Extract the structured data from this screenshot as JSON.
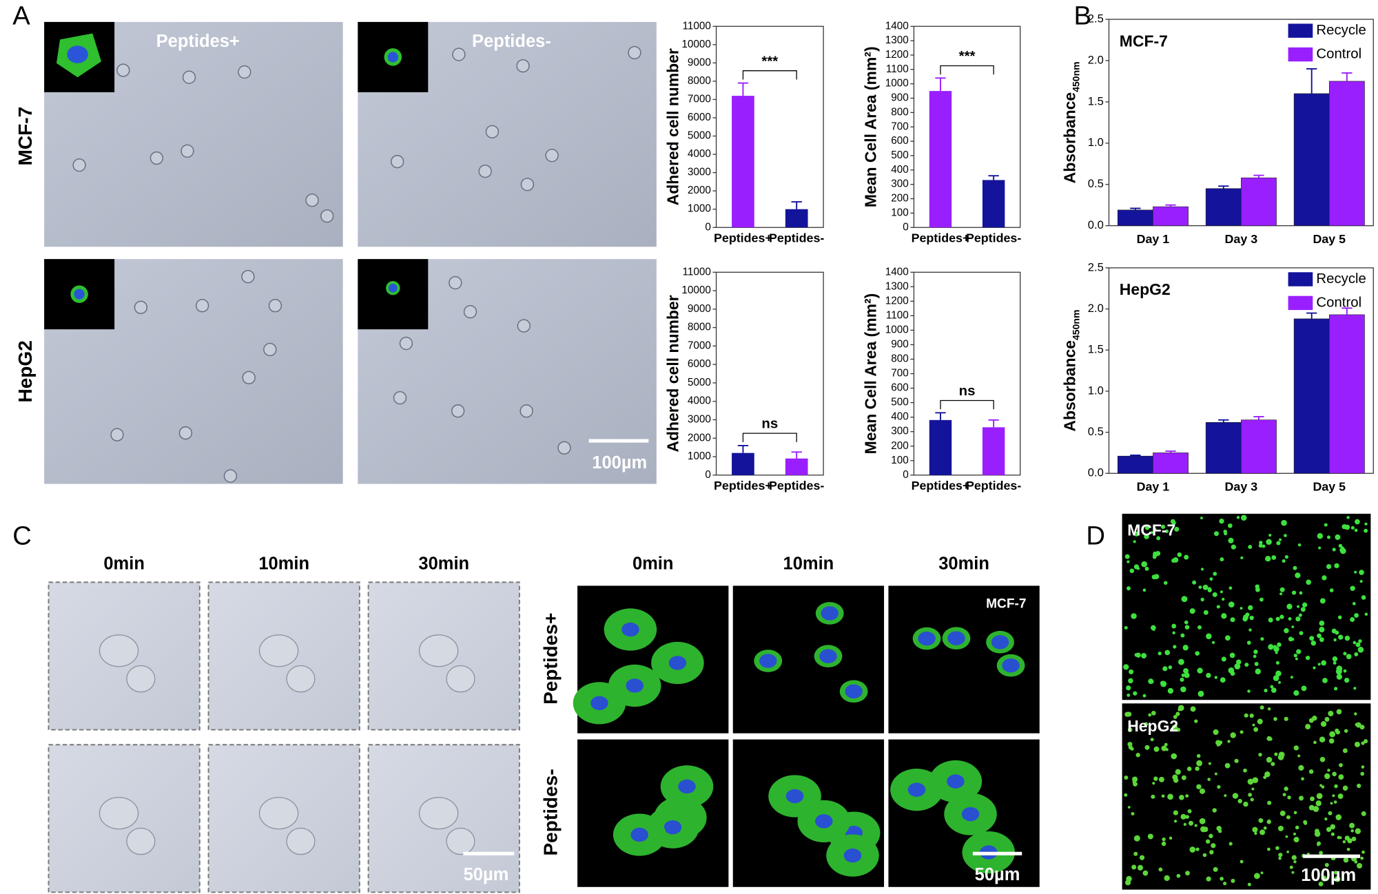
{
  "panel_labels": [
    "A",
    "B",
    "C",
    "D"
  ],
  "panel_a": {
    "row_labels": [
      "MCF-7",
      "HepG2"
    ],
    "column_labels": [
      "Peptides+",
      "Peptides-"
    ],
    "scale_bar": "100µm"
  },
  "chart_data": [
    {
      "type": "bar",
      "ylabel": "Adhered cell number",
      "categories": [
        "Peptides+",
        "Peptides-"
      ],
      "values": [
        7200,
        1000
      ],
      "errors": [
        700,
        400
      ],
      "colors": [
        "#9a1fff",
        "#13139b"
      ],
      "significance": "***",
      "ylim": [
        0,
        11000
      ],
      "yticks": [
        0,
        1000,
        2000,
        3000,
        4000,
        5000,
        6000,
        7000,
        8000,
        9000,
        10000,
        11000
      ]
    },
    {
      "type": "bar",
      "ylabel": "Mean Cell Area (mm²)",
      "categories": [
        "Peptides+",
        "Peptides-"
      ],
      "values": [
        950,
        330
      ],
      "errors": [
        90,
        30
      ],
      "colors": [
        "#9a1fff",
        "#13139b"
      ],
      "significance": "***",
      "ylim": [
        0,
        1400
      ],
      "yticks": [
        0,
        100,
        200,
        300,
        400,
        500,
        600,
        700,
        800,
        900,
        1000,
        1100,
        1200,
        1300,
        1400
      ]
    },
    {
      "type": "bar",
      "ylabel": "Adhered cell number",
      "categories": [
        "Peptides+",
        "Peptides-"
      ],
      "values": [
        1200,
        900
      ],
      "errors": [
        400,
        350
      ],
      "colors": [
        "#13139b",
        "#9a1fff"
      ],
      "significance": "ns",
      "ylim": [
        0,
        11000
      ],
      "yticks": [
        0,
        1000,
        2000,
        3000,
        4000,
        5000,
        6000,
        7000,
        8000,
        9000,
        10000,
        11000
      ]
    },
    {
      "type": "bar",
      "ylabel": "Mean Cell Area (mm²)",
      "categories": [
        "Peptides+",
        "Peptides-"
      ],
      "values": [
        380,
        330
      ],
      "errors": [
        50,
        50
      ],
      "colors": [
        "#13139b",
        "#9a1fff"
      ],
      "significance": "ns",
      "ylim": [
        0,
        1400
      ],
      "yticks": [
        0,
        100,
        200,
        300,
        400,
        500,
        600,
        700,
        800,
        900,
        1000,
        1100,
        1200,
        1300,
        1400
      ]
    },
    {
      "type": "grouped_bar",
      "title": "MCF-7",
      "ylabel": "Absorbance",
      "ylabel_sub": "450nm",
      "categories": [
        "Day 1",
        "Day 3",
        "Day 5"
      ],
      "legend": "upper right",
      "series": [
        {
          "name": "Recycle",
          "color": "#13139b",
          "values": [
            0.19,
            0.45,
            1.6
          ],
          "errors": [
            0.02,
            0.03,
            0.3
          ]
        },
        {
          "name": "Control",
          "color": "#9a1fff",
          "values": [
            0.23,
            0.58,
            1.75
          ],
          "errors": [
            0.02,
            0.03,
            0.1
          ]
        }
      ],
      "ylim": [
        0,
        2.5
      ],
      "yticks": [
        {
          "value": 0,
          "label": "0.0"
        },
        0.5,
        {
          "value": 1,
          "label": "1.0"
        },
        1.5,
        {
          "value": 2,
          "label": "2.0"
        },
        2.5
      ]
    },
    {
      "type": "grouped_bar",
      "title": "HepG2",
      "ylabel": "Absorbance",
      "ylabel_sub": "450nm",
      "categories": [
        "Day 1",
        "Day 3",
        "Day 5"
      ],
      "legend": "upper right",
      "series": [
        {
          "name": "Recycle",
          "color": "#13139b",
          "values": [
            0.21,
            0.62,
            1.88
          ],
          "errors": [
            0.01,
            0.03,
            0.07
          ]
        },
        {
          "name": "Control",
          "color": "#9a1fff",
          "values": [
            0.25,
            0.65,
            1.93
          ],
          "errors": [
            0.02,
            0.04,
            0.08
          ]
        }
      ],
      "ylim": [
        0,
        2.5
      ],
      "yticks": [
        {
          "value": 0,
          "label": "0.0"
        },
        0.5,
        {
          "value": 1,
          "label": "1.0"
        },
        1.5,
        {
          "value": 2,
          "label": "2.0"
        },
        2.5
      ]
    }
  ],
  "panel_c": {
    "time_labels": [
      "0min",
      "10min",
      "30min"
    ],
    "row_labels": [
      "Peptides+",
      "Peptides-"
    ],
    "cell_line": "MCF-7",
    "scale_bar": "50µm"
  },
  "panel_d": {
    "labels": [
      "MCF-7",
      "HepG2"
    ],
    "scale_bar": "100µm"
  }
}
